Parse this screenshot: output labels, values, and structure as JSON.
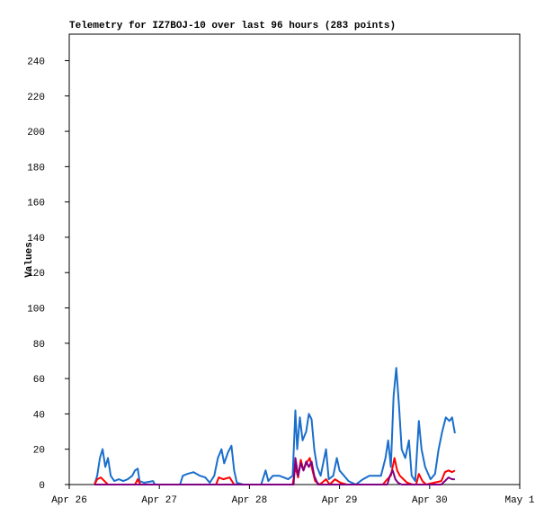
{
  "chart_data": {
    "type": "line",
    "title": "Telemetry for IZ7BOJ-10 over last 96 hours (283 points)",
    "y_label": "Values",
    "xlim": [
      0,
      5
    ],
    "xticks": [
      {
        "value": 0,
        "label": "Apr 26"
      },
      {
        "value": 1,
        "label": "Apr 27"
      },
      {
        "value": 2,
        "label": "Apr 28"
      },
      {
        "value": 3,
        "label": "Apr 29"
      },
      {
        "value": 4,
        "label": "Apr 30"
      },
      {
        "value": 5,
        "label": "May 1"
      }
    ],
    "ylim": [
      0,
      255
    ],
    "yticks": [
      0,
      20,
      40,
      60,
      80,
      100,
      120,
      140,
      160,
      180,
      200,
      220,
      240
    ],
    "series": [
      {
        "color": "#1a6ecc",
        "x": [
          0.28,
          0.31,
          0.34,
          0.37,
          0.4,
          0.43,
          0.46,
          0.5,
          0.55,
          0.6,
          0.65,
          0.7,
          0.73,
          0.76,
          0.78,
          0.83,
          0.93,
          0.95,
          1.03,
          1.23,
          1.26,
          1.31,
          1.38,
          1.45,
          1.51,
          1.56,
          1.61,
          1.65,
          1.69,
          1.72,
          1.76,
          1.8,
          1.83,
          1.86,
          1.93,
          2.13,
          2.18,
          2.21,
          2.26,
          2.33,
          2.38,
          2.43,
          2.48,
          2.51,
          2.53,
          2.56,
          2.59,
          2.63,
          2.66,
          2.69,
          2.72,
          2.75,
          2.79,
          2.85,
          2.88,
          2.93,
          2.97,
          3.0,
          3.05,
          3.1,
          3.18,
          3.26,
          3.33,
          3.4,
          3.46,
          3.51,
          3.54,
          3.57,
          3.6,
          3.63,
          3.66,
          3.69,
          3.73,
          3.77,
          3.8,
          3.84,
          3.88,
          3.91,
          3.95,
          4.01,
          4.06,
          4.1,
          4.14,
          4.18,
          4.22,
          4.25,
          4.28
        ],
        "values": [
          0,
          5,
          15,
          20,
          10,
          15,
          5,
          2,
          3,
          2,
          3,
          5,
          8,
          9,
          2,
          1,
          2,
          0,
          0,
          0,
          5,
          6,
          7,
          5,
          4,
          1,
          5,
          15,
          20,
          12,
          18,
          22,
          8,
          1,
          0,
          0,
          8,
          2,
          5,
          5,
          4,
          3,
          5,
          42,
          20,
          38,
          25,
          30,
          40,
          37,
          20,
          10,
          5,
          20,
          3,
          5,
          15,
          8,
          5,
          2,
          0,
          3,
          5,
          5,
          5,
          15,
          25,
          10,
          50,
          66,
          45,
          20,
          15,
          25,
          5,
          2,
          36,
          20,
          10,
          3,
          6,
          20,
          30,
          38,
          36,
          38,
          29
        ]
      },
      {
        "color": "#ff0000",
        "x": [
          0.28,
          0.31,
          0.35,
          0.39,
          0.43,
          0.73,
          0.76,
          0.79,
          1.63,
          1.66,
          1.71,
          1.78,
          1.83,
          2.48,
          2.51,
          2.54,
          2.57,
          2.6,
          2.63,
          2.67,
          2.7,
          2.73,
          2.78,
          2.85,
          2.89,
          2.95,
          3.01,
          3.08,
          3.48,
          3.53,
          3.57,
          3.61,
          3.64,
          3.67,
          3.71,
          3.75,
          3.81,
          3.85,
          3.88,
          3.92,
          3.96,
          4.13,
          4.17,
          4.21,
          4.25,
          4.28
        ],
        "values": [
          0,
          3,
          4,
          2,
          0,
          0,
          3,
          0,
          0,
          4,
          3,
          4,
          0,
          0,
          10,
          4,
          14,
          8,
          12,
          15,
          8,
          2,
          0,
          3,
          0,
          3,
          1,
          0,
          0,
          3,
          5,
          15,
          8,
          5,
          3,
          1,
          0,
          0,
          6,
          2,
          0,
          2,
          7,
          8,
          7,
          8
        ]
      },
      {
        "color": "#800080",
        "x": [
          0.28,
          2.43,
          2.49,
          2.51,
          2.54,
          2.57,
          2.6,
          2.63,
          2.66,
          2.69,
          2.72,
          2.76,
          3.53,
          3.56,
          3.59,
          3.62,
          3.65,
          3.69,
          4.13,
          4.17,
          4.21,
          4.25,
          4.28
        ],
        "values": [
          0,
          0,
          0,
          15,
          5,
          12,
          8,
          13,
          10,
          13,
          5,
          0,
          0,
          5,
          8,
          3,
          1,
          0,
          0,
          2,
          4,
          3,
          3
        ]
      }
    ]
  }
}
